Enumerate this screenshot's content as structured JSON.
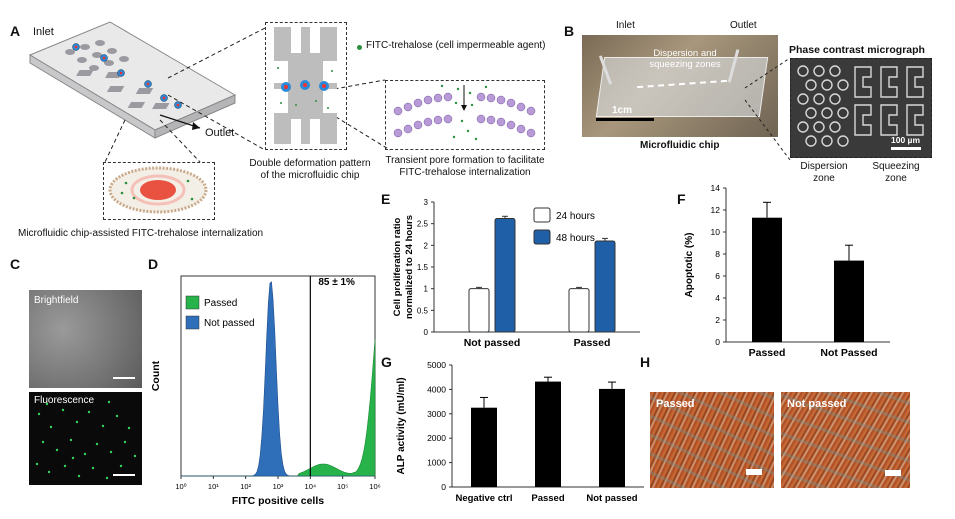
{
  "panels": {
    "A": "A",
    "B": "B",
    "C": "C",
    "D": "D",
    "E": "E",
    "F": "F",
    "G": "G",
    "H": "H"
  },
  "panel_a": {
    "inlet": "Inlet",
    "outlet": "Outlet",
    "legend": "FITC-trehalose (cell impermeable agent)",
    "double_deformation": "Double deformation pattern\nof the microfluidic chip",
    "transient_pore": "Transient pore formation to facilitate\nFITC-trehalose internalization",
    "caption": "Microfluidic chip-assisted FITC-trehalose internalization"
  },
  "panel_b": {
    "inlet": "Inlet",
    "outlet": "Outlet",
    "zones": "Dispersion and\nsqueezing zones",
    "scale": "1cm",
    "chip_caption": "Microfluidic chip",
    "micrograph_title": "Phase contrast micrograph",
    "micro_scale": "100 µm",
    "dispersion": "Dispersion\nzone",
    "squeezing": "Squeezing\nzone"
  },
  "panel_c": {
    "brightfield": "Brightfield",
    "fluorescence": "Fluorescence"
  },
  "panel_h": {
    "passed": "Passed",
    "not_passed": "Not passed"
  },
  "colors": {
    "passed_green": "#27b34a",
    "not_passed_blue": "#2f6fba",
    "bar_blue": "#1f5fa8",
    "bar_black": "#000000"
  },
  "chart_data": [
    {
      "id": "D",
      "type": "area",
      "xlabel": "FITC positive cells",
      "ylabel": "Count",
      "x_scale": "log",
      "x_ticks": [
        "10⁰",
        "10¹",
        "10²",
        "10³",
        "10⁴",
        "10⁵",
        "10⁶"
      ],
      "series": [
        {
          "name": "Passed",
          "color": "#27b34a"
        },
        {
          "name": "Not passed",
          "color": "#2f6fba"
        }
      ],
      "annotation": "85 ± 1%",
      "gate_x": 10000,
      "blue_peak_x": 600,
      "green_peak_x": 3000000,
      "green_shoulder_x": 1500000,
      "legend": "top-left"
    },
    {
      "id": "E",
      "type": "bar",
      "ylabel": "Cell proliferation ratio\nnormalized to 24 hours",
      "categories": [
        "Not passed",
        "Passed"
      ],
      "series": [
        {
          "name": "24 hours",
          "values": [
            1.0,
            1.0
          ],
          "errors": [
            0.03,
            0.03
          ],
          "color": "#ffffff"
        },
        {
          "name": "48 hours",
          "values": [
            2.62,
            2.1
          ],
          "errors": [
            0.05,
            0.06
          ],
          "color": "#1f5fa8"
        }
      ],
      "ylim": [
        0,
        3
      ],
      "yticks": [
        "0",
        "0.5",
        "1",
        "1.5",
        "2",
        "2.5",
        "3"
      ],
      "legend": "top-right"
    },
    {
      "id": "F",
      "type": "bar",
      "ylabel": "Apoptotic (%)",
      "categories": [
        "Passed",
        "Not Passed"
      ],
      "values": [
        11.3,
        7.4
      ],
      "errors": [
        1.4,
        1.4
      ],
      "ylim": [
        0,
        14
      ],
      "yticks": [
        "0",
        "2",
        "4",
        "6",
        "8",
        "10",
        "12",
        "14"
      ]
    },
    {
      "id": "G",
      "type": "bar",
      "ylabel": "ALP activity (mU/ml)",
      "categories": [
        "Negative ctrl",
        "Passed",
        "Not passed"
      ],
      "values": [
        3250,
        4320,
        4020
      ],
      "errors": [
        420,
        180,
        280
      ],
      "ylim": [
        0,
        5000
      ],
      "yticks": [
        "0",
        "1000",
        "2000",
        "3000",
        "4000",
        "5000"
      ]
    }
  ]
}
